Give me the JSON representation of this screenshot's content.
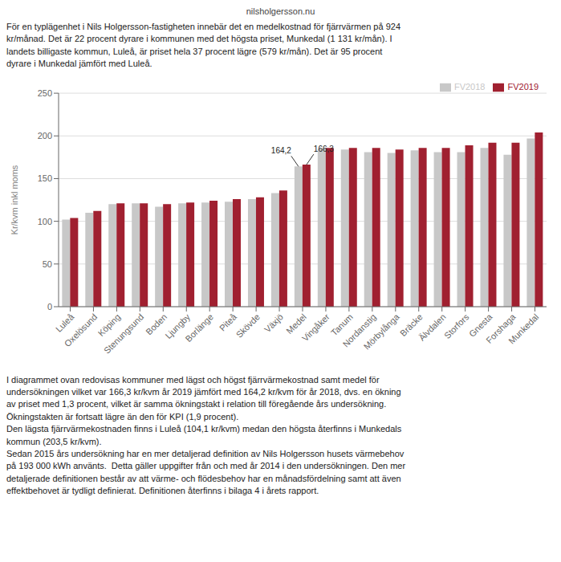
{
  "chart_data": {
    "type": "bar",
    "title": "nilsholgersson.nu",
    "subtitle": "För en typlägenhet i Nils Holgersson-fastigheten innebär det en medelkostnad för fjärrvärmen på 924\nkr/månad. Det är 22 procent dyrare i kommunen med det högsta priset, Munkedal (1 131 kr/mån). I\nlandets billigaste kommun, Luleå, är priset hela 37 procent lägre (579 kr/mån). Det är 95 procent\ndyrare i Munkedal jämfört med Luleå.",
    "categories": [
      "Luleå",
      "Oxelösund",
      "Köping",
      "Stenungsund",
      "Boden",
      "Ljungby",
      "Borlänge",
      "Piteå",
      "Skövde",
      "Växjö",
      "Medel",
      "Vingåker",
      "Tanum",
      "Nordanstig",
      "Mörbylånga",
      "Bräcke",
      "Älvdalen",
      "Storfors",
      "Gnesta",
      "Forshaga",
      "Munkedal"
    ],
    "series": [
      {
        "name": "FV2018",
        "color": "#c8c8c8",
        "values": [
          102.0,
          110.0,
          120.0,
          121.0,
          117.0,
          121.0,
          122.0,
          123.0,
          126.0,
          133.0,
          164.2,
          185.0,
          184.0,
          181.0,
          180.0,
          183.0,
          181.0,
          181.0,
          186.0,
          178.0,
          197.0
        ]
      },
      {
        "name": "FV2019",
        "color": "#a02030",
        "values": [
          104.0,
          112.0,
          121.0,
          121.0,
          120.0,
          122.0,
          124.0,
          126.0,
          128.0,
          136.0,
          166.3,
          186.0,
          186.0,
          186.0,
          184.0,
          186.0,
          186.0,
          189.0,
          192.0,
          192.0,
          204.0
        ]
      }
    ],
    "ylabel": "Kr/kvm inkl moms",
    "ylim": [
      0,
      250
    ],
    "yticks": [
      0,
      50,
      100,
      150,
      200,
      250
    ],
    "grid": true,
    "legend": "upper right",
    "annotations": [
      {
        "text": "164,2",
        "x": "Medel",
        "y": 164.2,
        "series": "FV2018"
      },
      {
        "text": "166,3",
        "x": "Medel",
        "y": 166.3,
        "series": "FV2019"
      },
      {
        "text": "I diagrammet ovan redovisas kommuner med lägst och högst fjärrvärmekostnad samt medel för\nundersökningen vilket var 166,3 kr/kvm år 2019 jämfört med 164,2 kr/kvm för år 2018, dvs. en ökning\nav priset med 1,3 procent, vilket är samma ökningstakt i relation till föregående års undersökning.\nÖkningstakten är fortsatt lägre än den för KPI (1,9 procent).\nDen lägsta fjärrvärmekostnaden finns i Luleå (104,1 kr/kvm) medan den högsta återfinns i Munkedals\nkommun (203,5 kr/kvm).\nSedan 2015 års undersökning har en mer detaljerad definition av Nils Holgersson husets värmebehov\npå 193 000 kWh använts.  Detta gäller uppgifter från och med år 2014 i den undersökningen. Den mer\ndetaljerade definitionen består av att värme- och flödesbehov har en månadsfördelning samt att även\neffektbehovet är tydligt definierat. Definitionen återfinns i bilaga 4 i årets rapport."
      }
    ]
  }
}
